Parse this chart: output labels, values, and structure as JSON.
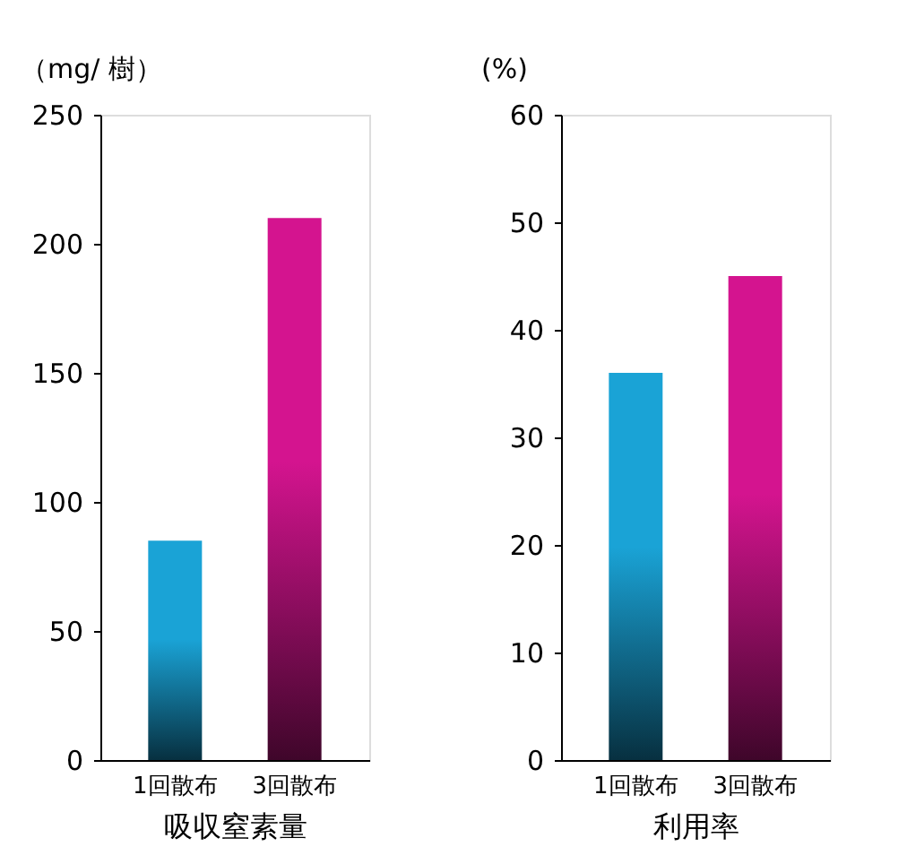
{
  "chart_data": [
    {
      "type": "bar",
      "ylabel": "（mg/ 樹）",
      "xlabel": "吸収窒素量",
      "categories": [
        "1回散布",
        "3回散布"
      ],
      "values": [
        85,
        210
      ],
      "colors": [
        "#1aa3d6",
        "#d4148f"
      ],
      "ylim": [
        0,
        250
      ],
      "yticks": [
        0,
        50,
        100,
        150,
        200,
        250
      ],
      "grid": false,
      "legend": false
    },
    {
      "type": "bar",
      "ylabel": "(%)",
      "xlabel": "利用率",
      "categories": [
        "1回散布",
        "3回散布"
      ],
      "values": [
        36,
        45
      ],
      "colors": [
        "#1aa3d6",
        "#d4148f"
      ],
      "ylim": [
        0,
        60
      ],
      "yticks": [
        0,
        10,
        20,
        30,
        40,
        50,
        60
      ],
      "grid": false,
      "legend": false
    }
  ]
}
